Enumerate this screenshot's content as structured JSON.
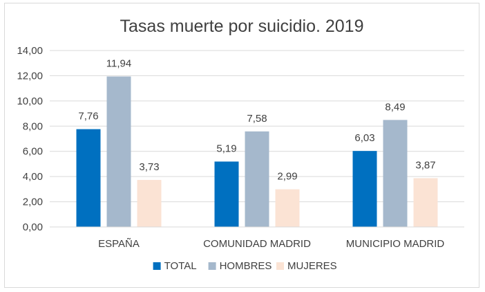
{
  "chart_data": {
    "type": "bar",
    "title": "Tasas muerte por suicidio. 2019",
    "categories": [
      "ESPAÑA",
      "COMUNIDAD MADRID",
      "MUNICIPIO MADRID"
    ],
    "series": [
      {
        "name": "TOTAL",
        "values": [
          7.76,
          5.19,
          6.03
        ],
        "labels": [
          "7,76",
          "5,19",
          "6,03"
        ],
        "color": "#0070c0"
      },
      {
        "name": "HOMBRES",
        "values": [
          11.94,
          7.58,
          8.49
        ],
        "labels": [
          "11,94",
          "7,58",
          "8,49"
        ],
        "color": "#a5b8cc"
      },
      {
        "name": "MUJERES",
        "values": [
          3.73,
          2.99,
          3.87
        ],
        "labels": [
          "3,73",
          "2,99",
          "3,87"
        ],
        "color": "#fbe3d4"
      }
    ],
    "ylim": [
      0,
      14
    ],
    "yticks": [
      0,
      2,
      4,
      6,
      8,
      10,
      12,
      14
    ],
    "ytick_labels": [
      "0,00",
      "2,00",
      "4,00",
      "6,00",
      "8,00",
      "10,00",
      "12,00",
      "14,00"
    ],
    "grid": true,
    "gridline_color": "#d9d9d9",
    "legend_position": "bottom"
  }
}
